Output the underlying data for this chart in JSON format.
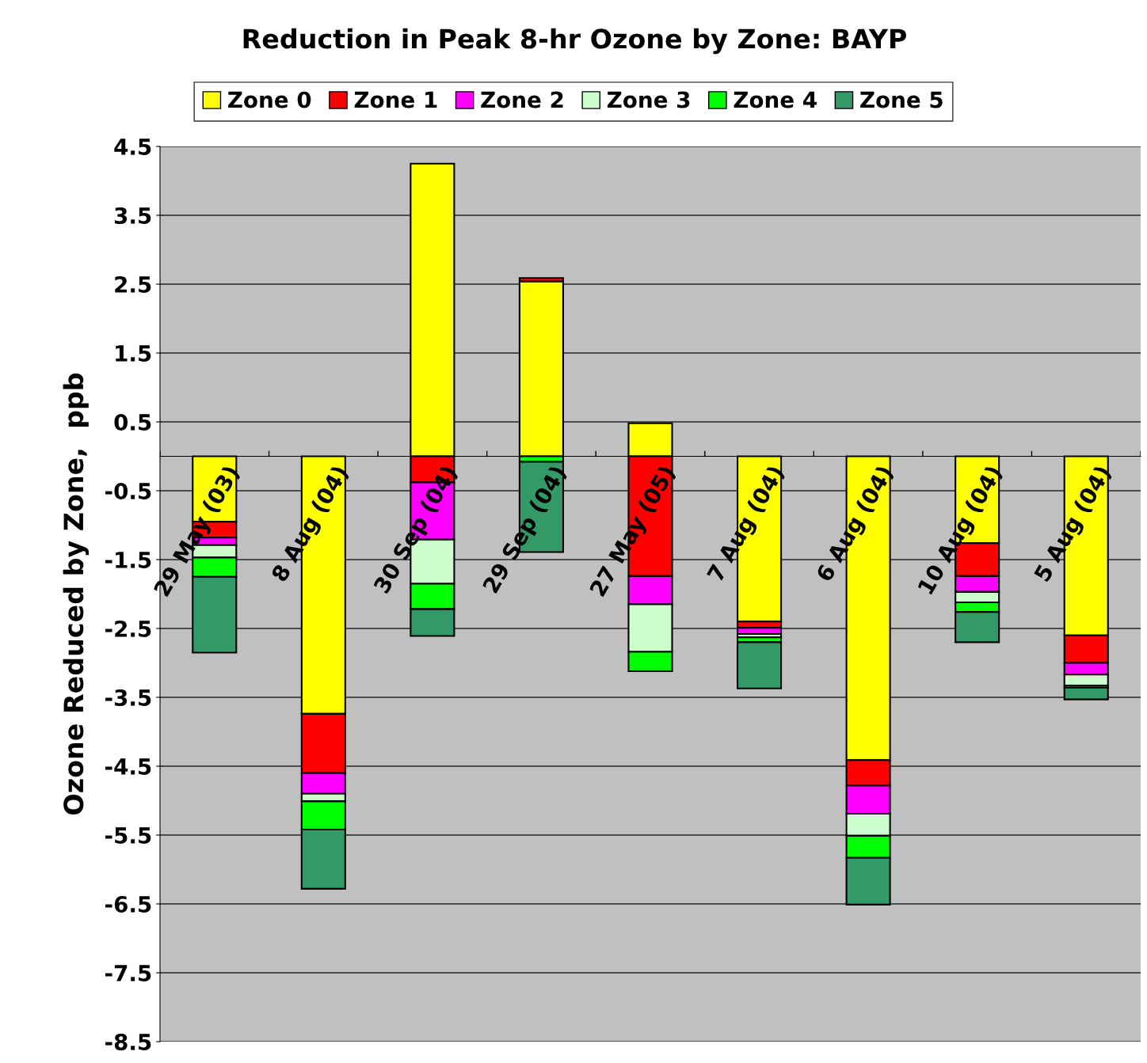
{
  "chart_data": {
    "type": "bar",
    "stacked": true,
    "title": "Reduction in Peak 8-hr Ozone by Zone: BAYP",
    "ylabel": "Ozone Reduced by Zone,  ppb",
    "categories": [
      "29 May (03)",
      "8 Aug (04)",
      "30 Sep (04)",
      "29 Sep (04)",
      "27 May (05)",
      "7 Aug (04)",
      "6 Aug (04)",
      "10 Aug (04)",
      "5 Aug (04)"
    ],
    "series": [
      {
        "name": "Zone 0",
        "color": "#ffff00",
        "values": [
          -0.95,
          -3.74,
          4.25,
          2.54,
          0.48,
          -2.4,
          -4.41,
          -1.26,
          -2.6
        ]
      },
      {
        "name": "Zone 1",
        "color": "#ff0000",
        "values": [
          -0.23,
          -0.86,
          -0.38,
          0.05,
          -1.74,
          -0.09,
          -0.37,
          -0.48,
          -0.4
        ]
      },
      {
        "name": "Zone 2",
        "color": "#ff00ff",
        "values": [
          -0.11,
          -0.3,
          -0.83,
          0,
          -0.41,
          -0.09,
          -0.41,
          -0.23,
          -0.17
        ]
      },
      {
        "name": "Zone 3",
        "color": "#ccffcc",
        "values": [
          -0.18,
          -0.11,
          -0.64,
          0,
          -0.69,
          -0.05,
          -0.32,
          -0.15,
          -0.16
        ]
      },
      {
        "name": "Zone 4",
        "color": "#00ff00",
        "values": [
          -0.28,
          -0.41,
          -0.37,
          -0.08,
          -0.28,
          -0.07,
          -0.32,
          -0.14,
          -0.03
        ]
      },
      {
        "name": "Zone 5",
        "color": "#339966",
        "values": [
          -1.1,
          -0.86,
          -0.39,
          -1.31,
          0,
          -0.67,
          -0.68,
          -0.44,
          -0.17
        ]
      }
    ],
    "ylim": [
      -8.5,
      4.5
    ],
    "yticks": [
      4.5,
      3.5,
      2.5,
      1.5,
      0.5,
      -0.5,
      -1.5,
      -2.5,
      -3.5,
      -4.5,
      -5.5,
      -6.5,
      -7.5,
      -8.5
    ],
    "grid": "y",
    "legend": "top"
  }
}
